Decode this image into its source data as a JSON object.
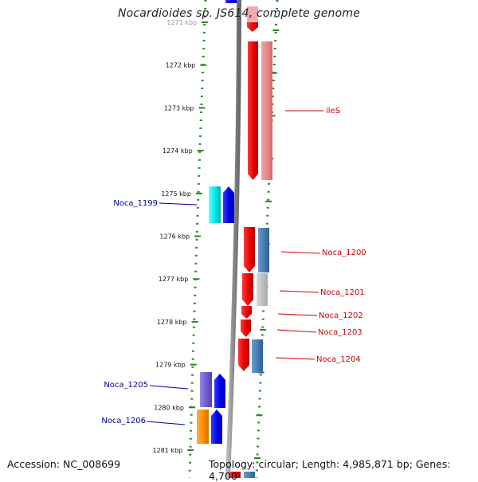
{
  "title": "Nocardioides sp. JS614, complete genome",
  "footer": {
    "accession": "Accession: NC_008699",
    "topology": "Topology: circular; Length: 4,985,871 bp; Genes: 4,700"
  },
  "colors": {
    "backbone": "#888888",
    "tick": "#228822",
    "forward_gene": "#1010ee",
    "reverse_gene": "#ee1010",
    "label_red": "#cc0000",
    "label_blue": "#000099"
  },
  "ticks": [
    {
      "label": "1271 kbp",
      "faded": true
    },
    {
      "label": "1272 kbp"
    },
    {
      "label": "1273 kbp"
    },
    {
      "label": "1274 kbp"
    },
    {
      "label": "1275 kbp"
    },
    {
      "label": "1276 kbp"
    },
    {
      "label": "1277 kbp"
    },
    {
      "label": "1278 kbp"
    },
    {
      "label": "1279 kbp"
    },
    {
      "label": "1280 kbp"
    },
    {
      "label": "1281 kbp"
    }
  ],
  "gene_labels": [
    {
      "text": "ileS",
      "strand": "reverse"
    },
    {
      "text": "Noca_1199",
      "strand": "forward"
    },
    {
      "text": "Noca_1200",
      "strand": "reverse"
    },
    {
      "text": "Noca_1201",
      "strand": "reverse"
    },
    {
      "text": "Noca_1202",
      "strand": "reverse"
    },
    {
      "text": "Noca_1203",
      "strand": "reverse"
    },
    {
      "text": "Noca_1204",
      "strand": "reverse"
    },
    {
      "text": "Noca_1205",
      "strand": "forward"
    },
    {
      "text": "Noca_1206",
      "strand": "forward"
    }
  ]
}
